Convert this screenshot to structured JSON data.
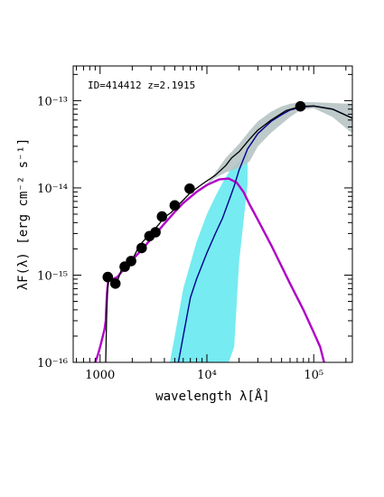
{
  "chart_data": {
    "type": "line",
    "title": "",
    "annotation": "ID=414412 z=2.1915",
    "xlabel": "wavelength λ[Å]",
    "ylabel": "λF(λ) [erg cm⁻² s⁻¹]",
    "x_scale": "log",
    "y_scale": "log",
    "xlim": [
      560,
      230000
    ],
    "ylim": [
      1e-16,
      2.5e-13
    ],
    "x_ticks": [
      {
        "value": 1000,
        "label": "1000"
      },
      {
        "value": 10000,
        "label": "10⁴"
      },
      {
        "value": 100000,
        "label": "10⁵"
      }
    ],
    "y_ticks": [
      {
        "value": 1e-16,
        "label": "10⁻¹⁶"
      },
      {
        "value": 1e-15,
        "label": "10⁻¹⁵"
      },
      {
        "value": 1e-14,
        "label": "10⁻¹⁴"
      },
      {
        "value": 1e-13,
        "label": "10⁻¹³"
      }
    ],
    "grid": false,
    "colors": {
      "total_model": "#000000",
      "agn_disk": "#b000c8",
      "torus": "#00008b",
      "torus_band": "#5ee8ee",
      "total_band": "#b7c4c4",
      "photometry": "#000000"
    },
    "photometry": [
      {
        "x": 1180,
        "y": 9.5e-16
      },
      {
        "x": 1390,
        "y": 8e-16
      },
      {
        "x": 1700,
        "y": 1.25e-15
      },
      {
        "x": 1950,
        "y": 1.45e-15
      },
      {
        "x": 2450,
        "y": 2.05e-15
      },
      {
        "x": 2900,
        "y": 2.8e-15
      },
      {
        "x": 3300,
        "y": 3.1e-15
      },
      {
        "x": 3800,
        "y": 4.7e-15
      },
      {
        "x": 5000,
        "y": 6.3e-15
      },
      {
        "x": 6900,
        "y": 9.8e-15
      },
      {
        "x": 75000,
        "y": 8.6e-14
      }
    ],
    "series": [
      {
        "id": "total_model",
        "x": [
          1130,
          1150,
          1170,
          1200,
          1260,
          1330,
          1450,
          1600,
          1800,
          2000,
          2250,
          2500,
          2800,
          3200,
          3600,
          4000,
          4600,
          5500,
          7000,
          9000,
          12000,
          15000,
          17000,
          20000,
          25000,
          30000,
          40000,
          55000,
          75000,
          100000,
          150000,
          230000
        ],
        "y": [
          1e-16,
          3e-16,
          6e-16,
          9.5e-16,
          9.3e-16,
          9e-16,
          8.5e-16,
          1.2e-15,
          1.35e-15,
          1.5e-15,
          2e-15,
          2.4e-15,
          2.8e-15,
          3.3e-15,
          3.9e-15,
          4.6e-15,
          5.2e-15,
          6.5e-15,
          8.8e-15,
          1.1e-14,
          1.4e-14,
          1.8e-14,
          2.2e-14,
          2.6e-14,
          3.6e-14,
          4.6e-14,
          6e-14,
          7.7e-14,
          8.6e-14,
          8.7e-14,
          8e-14,
          6.3e-14
        ]
      },
      {
        "id": "agn_disk",
        "x": [
          900,
          950,
          1000,
          1050,
          1100,
          1130,
          1150,
          1170,
          1200,
          1300,
          1450,
          1600,
          1800,
          2000,
          2500,
          3000,
          3500,
          4000,
          5000,
          6000,
          8000,
          10000,
          13000,
          16000,
          19000,
          22000,
          25000,
          30000,
          40000,
          60000,
          80000,
          100000,
          115000,
          125000
        ],
        "y": [
          1e-16,
          1.2e-16,
          1.5e-16,
          1.9e-16,
          2.4e-16,
          3e-16,
          5e-16,
          7e-16,
          9e-16,
          9e-16,
          9.5e-16,
          1.1e-15,
          1.3e-15,
          1.5e-15,
          2e-15,
          2.6e-15,
          3.2e-15,
          3.9e-15,
          5.3e-15,
          6.7e-15,
          9e-15,
          1.08e-14,
          1.25e-14,
          1.28e-14,
          1.15e-14,
          9e-15,
          6.5e-15,
          4.3e-15,
          2.2e-15,
          8e-16,
          4e-16,
          2.2e-16,
          1.5e-16,
          1e-16
        ]
      },
      {
        "id": "torus",
        "x": [
          5400,
          6000,
          7000,
          8000,
          9000,
          10000,
          12000,
          14000,
          16000,
          18000,
          20000,
          24000,
          30000,
          40000,
          50000,
          60000,
          75000,
          100000,
          150000,
          230000
        ],
        "y": [
          1e-16,
          2e-16,
          5.5e-16,
          9e-16,
          1.3e-15,
          1.8e-15,
          3e-15,
          4.5e-15,
          7e-15,
          1.05e-14,
          1.6e-14,
          2.8e-14,
          4.2e-14,
          5.8e-14,
          6.9e-14,
          7.8e-14,
          8.4e-14,
          8.7e-14,
          8e-14,
          6.3e-14
        ]
      }
    ],
    "bands": [
      {
        "id": "torus_band",
        "x": [
          4500,
          5000,
          6000,
          8000,
          10000,
          12000,
          14000,
          16000,
          18000,
          20000,
          24000
        ],
        "y_low": [
          1e-16,
          1e-16,
          1e-16,
          1e-16,
          1e-16,
          1e-16,
          1e-16,
          1e-16,
          1.5e-16,
          1.4e-15,
          1.1e-14
        ],
        "y_high": [
          1e-16,
          2e-16,
          7e-16,
          2.4e-15,
          5e-15,
          8e-15,
          1.15e-14,
          1.5e-14,
          1.8e-14,
          2e-14,
          2.6e-14
        ]
      },
      {
        "id": "total_band",
        "x": [
          10000,
          12000,
          15000,
          20000,
          25000,
          30000,
          40000,
          50000,
          60000,
          75000,
          100000,
          150000,
          230000
        ],
        "y_low": [
          1.1e-14,
          1.3e-14,
          1.5e-14,
          1.7e-14,
          2e-14,
          3e-14,
          4.3e-14,
          5.4e-14,
          6.5e-14,
          7.8e-14,
          8.2e-14,
          6.5e-14,
          4.2e-14
        ],
        "y_high": [
          1.1e-14,
          1.5e-14,
          2.2e-14,
          3.2e-14,
          4.5e-14,
          5.8e-14,
          7.5e-14,
          8.6e-14,
          9.2e-14,
          9.6e-14,
          9.6e-14,
          9.4e-14,
          9.2e-14
        ]
      }
    ]
  }
}
